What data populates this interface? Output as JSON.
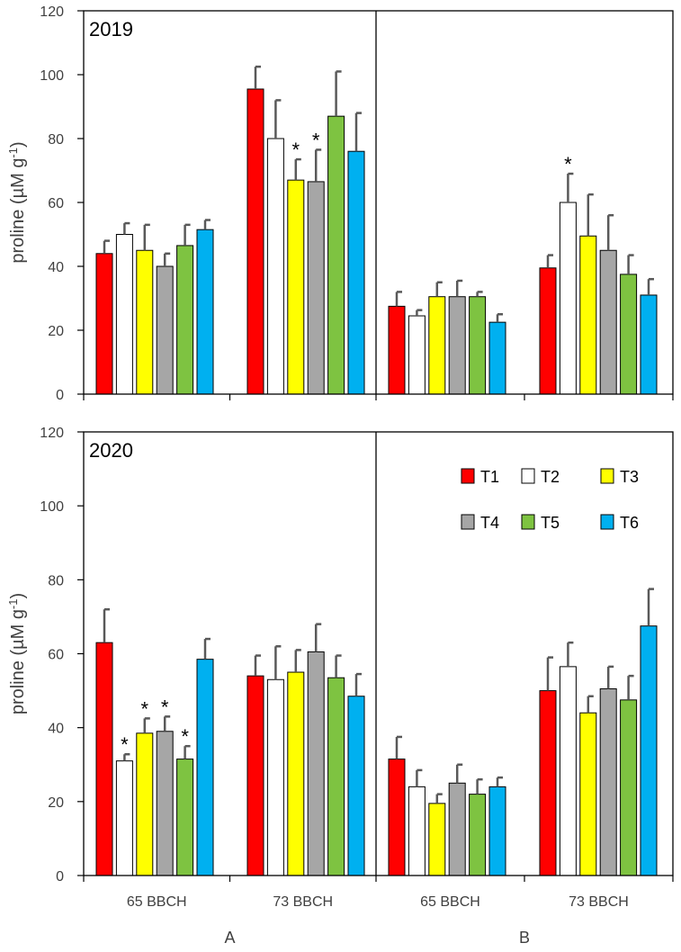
{
  "chart_data": {
    "type": "bar",
    "ylabel": "proline (µM g",
    "ylabel_sup": "-1",
    "ylabel_close": ")",
    "ylim": [
      0,
      120
    ],
    "yticks": [
      "0",
      "20",
      "40",
      "60",
      "80",
      "100",
      "120"
    ],
    "categories": [
      "65 BBCH",
      "73 BBCH"
    ],
    "group_labels": [
      "A",
      "B"
    ],
    "years": [
      "2019",
      "2020"
    ],
    "significance_mark": "*",
    "colors": {
      "T1": "#ff0000",
      "T2": "#ffffff",
      "T3": "#ffff00",
      "T4": "#a6a6a6",
      "T5": "#7ec341",
      "T6": "#00b0f0",
      "error": "#595959",
      "axis": "#000000"
    },
    "legend": [
      "T1",
      "T2",
      "T3",
      "T4",
      "T5",
      "T6"
    ],
    "panels": [
      {
        "year": "2019",
        "group": "A",
        "values": [
          [
            44,
            50,
            45,
            40,
            46.5,
            51.5
          ],
          [
            95.5,
            80,
            67,
            66.5,
            87,
            76
          ]
        ],
        "errors": [
          [
            4,
            3.5,
            8,
            4,
            6.5,
            3
          ],
          [
            7,
            12,
            6.5,
            10,
            14,
            12
          ]
        ],
        "significant": [
          [
            false,
            false,
            false,
            false,
            false,
            false
          ],
          [
            false,
            false,
            true,
            true,
            false,
            false
          ]
        ]
      },
      {
        "year": "2019",
        "group": "B",
        "values": [
          [
            27.5,
            24.5,
            30.5,
            30.5,
            30.5,
            22.5
          ],
          [
            39.5,
            60,
            49.5,
            45,
            37.5,
            31
          ]
        ],
        "errors": [
          [
            4.5,
            1.8,
            4.5,
            5,
            1.5,
            2.5
          ],
          [
            4,
            9,
            13,
            11,
            6,
            5
          ]
        ],
        "significant": [
          [
            false,
            false,
            false,
            false,
            false,
            false
          ],
          [
            false,
            true,
            false,
            false,
            false,
            false
          ]
        ]
      },
      {
        "year": "2020",
        "group": "A",
        "values": [
          [
            63,
            31,
            38.5,
            39,
            31.5,
            58.5
          ],
          [
            54,
            53,
            55,
            60.5,
            53.5,
            48.5
          ]
        ],
        "errors": [
          [
            9,
            1.8,
            4,
            4,
            3.5,
            5.5
          ],
          [
            5.5,
            9,
            6,
            7.5,
            6,
            6
          ]
        ],
        "significant": [
          [
            false,
            true,
            true,
            true,
            true,
            false
          ],
          [
            false,
            false,
            false,
            false,
            false,
            false
          ]
        ]
      },
      {
        "year": "2020",
        "group": "B",
        "values": [
          [
            31.5,
            24,
            19.5,
            25,
            22,
            24
          ],
          [
            50,
            56.5,
            44,
            50.5,
            47.5,
            67.5
          ]
        ],
        "errors": [
          [
            6,
            4.5,
            2.5,
            5,
            4,
            2.5
          ],
          [
            9,
            6.5,
            4.5,
            6,
            6.5,
            10
          ]
        ],
        "significant": [
          [
            false,
            false,
            false,
            false,
            false,
            false
          ],
          [
            false,
            false,
            false,
            false,
            false,
            false
          ]
        ]
      }
    ]
  }
}
